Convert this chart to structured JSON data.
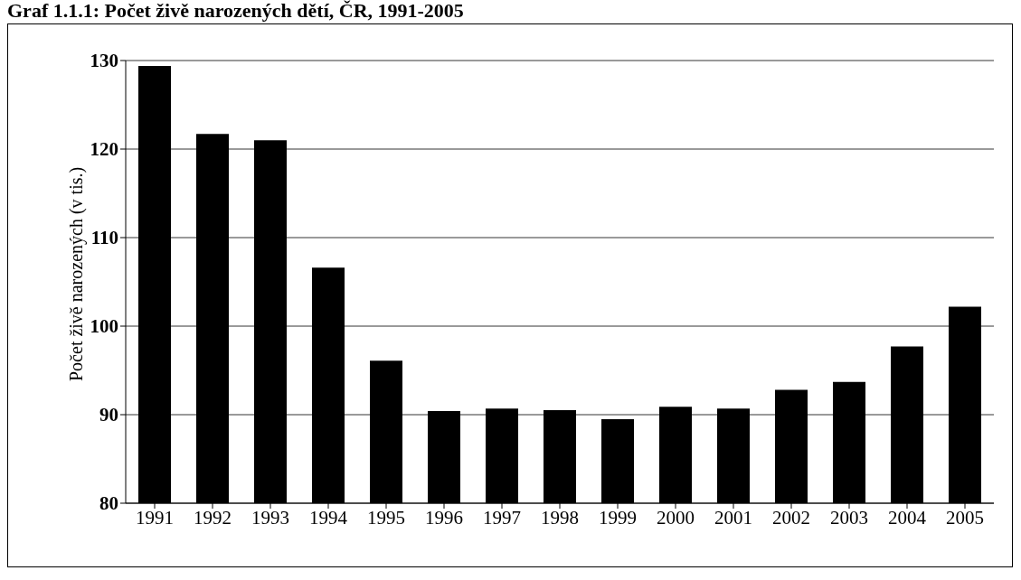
{
  "chart_data": {
    "type": "bar",
    "title": "Graf 1.1.1: Počet živě narozených dětí, ČR, 1991-2005",
    "ylabel": "Počet živě narozených (v tis.)",
    "categories": [
      "1991",
      "1992",
      "1993",
      "1994",
      "1995",
      "1996",
      "1997",
      "1998",
      "1999",
      "2000",
      "2001",
      "2002",
      "2003",
      "2004",
      "2005"
    ],
    "values": [
      129.4,
      121.7,
      121.0,
      106.6,
      96.1,
      90.4,
      90.7,
      90.5,
      89.5,
      90.9,
      90.7,
      92.8,
      93.7,
      97.7,
      102.2
    ],
    "color": "#000000",
    "ylim": [
      80,
      130
    ],
    "yticks": [
      80,
      90,
      100,
      110,
      120,
      130
    ],
    "grid": "y"
  }
}
